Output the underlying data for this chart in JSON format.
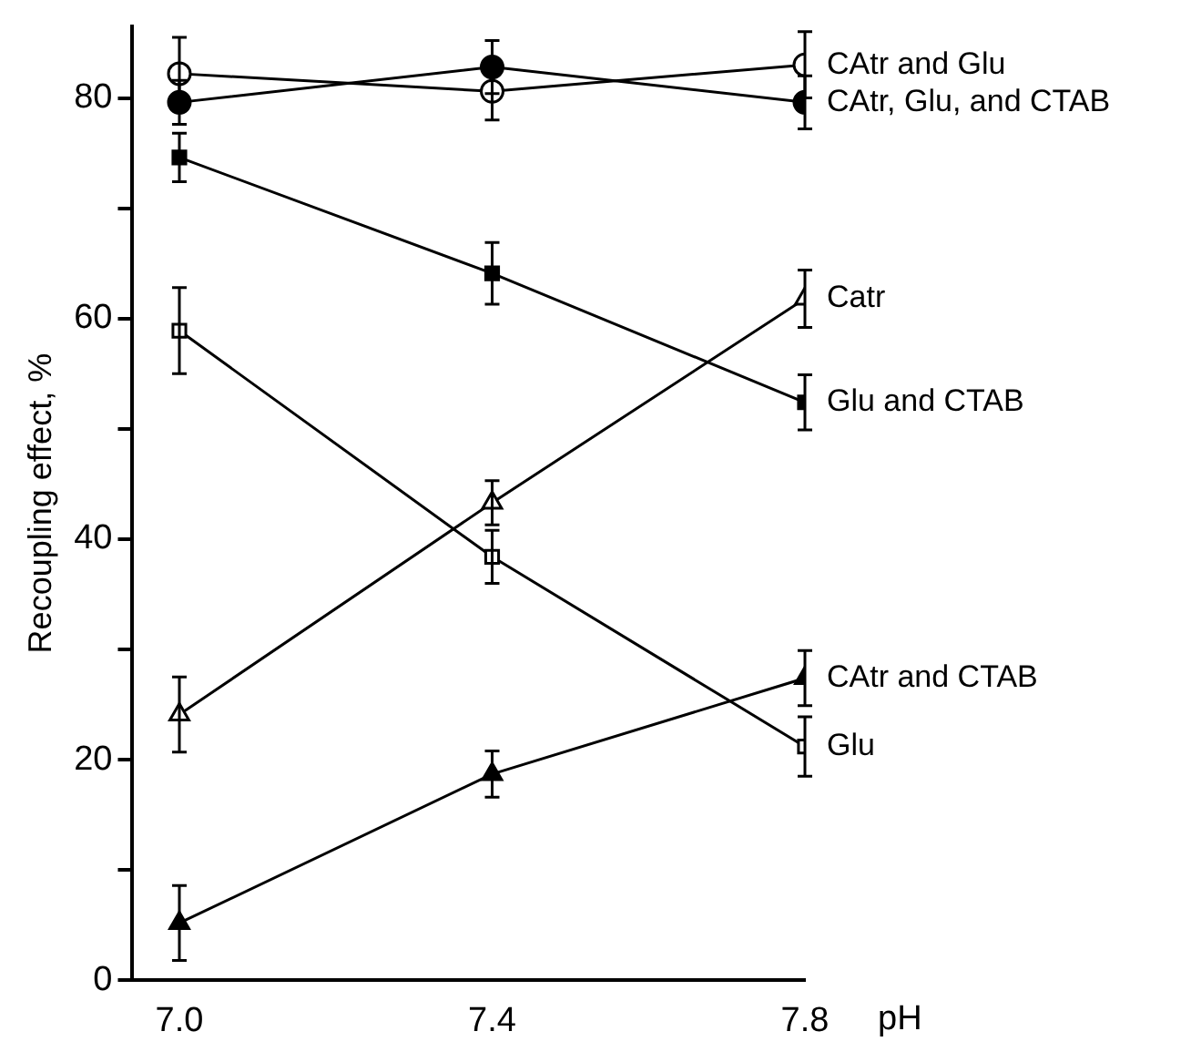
{
  "chart_data": {
    "type": "line",
    "xlabel": "pH",
    "ylabel": "Recoupling effect, %",
    "x": [
      7.0,
      7.4,
      7.8
    ],
    "xlim": [
      6.94,
      7.8
    ],
    "xticks": [
      {
        "value": 7.0,
        "label": "7.0"
      },
      {
        "value": 7.4,
        "label": "7.4"
      },
      {
        "value": 7.8,
        "label": "7.8"
      }
    ],
    "ylim": [
      0,
      86.5
    ],
    "yticks": [
      0,
      {
        "value": 10,
        "label": null
      },
      20,
      {
        "value": 30,
        "label": null
      },
      40,
      {
        "value": 50,
        "label": null
      },
      60,
      {
        "value": 70,
        "label": null
      },
      80
    ],
    "grid": false,
    "legend": false,
    "line_style": "solid",
    "series": [
      {
        "name": "CAtr and Glu",
        "color": "#ffffff",
        "marker": "circle",
        "values": [
          82.2,
          80.6,
          83.0
        ],
        "errors": [
          3.3,
          2.6,
          3.0
        ]
      },
      {
        "name": "CAtr, Glu, and CTAB",
        "color": "#000000",
        "marker": "circle",
        "values": [
          79.6,
          82.8,
          79.6
        ],
        "errors": [
          2.0,
          2.4,
          2.4
        ]
      },
      {
        "name": "Glu and CTAB",
        "color": "#000000",
        "marker": "square",
        "values": [
          74.6,
          64.1,
          52.4
        ],
        "errors": [
          2.2,
          2.8,
          2.5
        ]
      },
      {
        "name": "Catr",
        "color": "#ffffff",
        "marker": "triangle",
        "values": [
          24.1,
          43.3,
          61.8
        ],
        "errors": [
          3.4,
          2.0,
          2.6
        ]
      },
      {
        "name": "Glu",
        "color": "#ffffff",
        "marker": "square",
        "values": [
          58.9,
          38.4,
          21.2
        ],
        "errors": [
          3.9,
          2.4,
          2.7
        ]
      },
      {
        "name": "CAtr and CTAB",
        "color": "#000000",
        "marker": "triangle",
        "values": [
          5.2,
          18.7,
          27.4
        ],
        "errors": [
          3.4,
          2.1,
          2.5
        ]
      }
    ]
  }
}
